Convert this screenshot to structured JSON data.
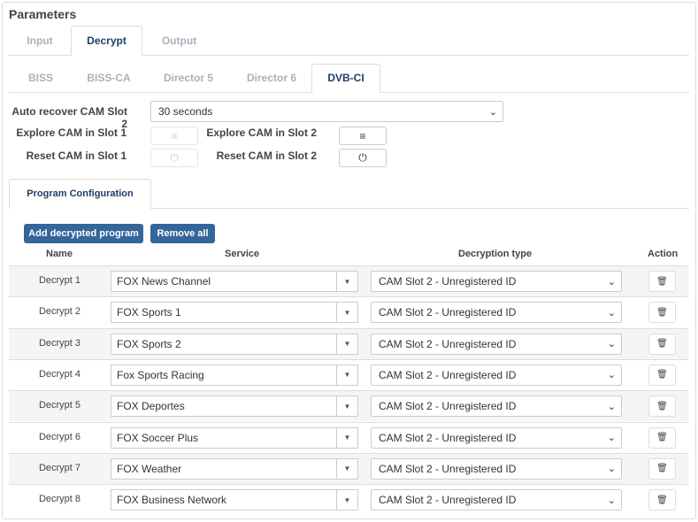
{
  "title": "Parameters",
  "main_tabs": [
    "Input",
    "Decrypt",
    "Output"
  ],
  "sub_tabs": [
    "BISS",
    "BISS-CA",
    "Director 5",
    "Director 6",
    "DVB-CI"
  ],
  "auto_recover": {
    "label": "Auto recover CAM Slot 2",
    "value": "30 seconds"
  },
  "explore1": "Explore CAM in Slot 1",
  "explore2": "Explore CAM in Slot 2",
  "reset1": "Reset CAM in Slot 1",
  "reset2": "Reset CAM in Slot 2",
  "prog_tab": "Program Configuration",
  "add_btn": "Add decrypted program",
  "remove_btn": "Remove all",
  "headers": {
    "name": "Name",
    "service": "Service",
    "type": "Decryption type",
    "action": "Action"
  },
  "accent": "#336699",
  "rows": [
    {
      "name": "Decrypt 1",
      "service": "FOX News Channel",
      "type": "CAM Slot 2 - Unregistered ID"
    },
    {
      "name": "Decrypt 2",
      "service": "FOX Sports 1",
      "type": "CAM Slot 2 - Unregistered ID"
    },
    {
      "name": "Decrypt 3",
      "service": "FOX Sports 2",
      "type": "CAM Slot 2 - Unregistered ID"
    },
    {
      "name": "Decrypt 4",
      "service": "Fox Sports Racing",
      "type": "CAM Slot 2 - Unregistered ID"
    },
    {
      "name": "Decrypt 5",
      "service": "FOX Deportes",
      "type": "CAM Slot 2 - Unregistered ID"
    },
    {
      "name": "Decrypt 6",
      "service": "FOX Soccer Plus",
      "type": "CAM Slot 2 - Unregistered ID"
    },
    {
      "name": "Decrypt 7",
      "service": "FOX Weather",
      "type": "CAM Slot 2 - Unregistered ID"
    },
    {
      "name": "Decrypt 8",
      "service": "FOX Business Network",
      "type": "CAM Slot 2 - Unregistered ID"
    }
  ]
}
